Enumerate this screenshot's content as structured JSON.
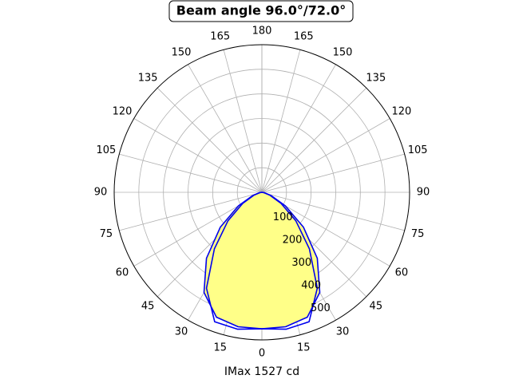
{
  "chart_data": {
    "type": "polar",
    "title": "Beam angle 96.0°/72.0°",
    "xlabel": "IMax 1527 cd",
    "rlim": [
      0,
      600
    ],
    "rticks": [
      100,
      200,
      300,
      400,
      500
    ],
    "thetaticks": [
      0,
      15,
      30,
      45,
      60,
      75,
      90,
      105,
      120,
      135,
      150,
      165,
      180
    ],
    "grid": true,
    "angles": [
      -90,
      -80,
      -70,
      -60,
      -50,
      -40,
      -30,
      -20,
      -10,
      0,
      10,
      20,
      30,
      40,
      50,
      60,
      70,
      80,
      90
    ],
    "series": [
      {
        "color": "#0000ee",
        "fill": "#ffff88",
        "values": [
          0,
          10,
          40,
          110,
          220,
          350,
          470,
          540,
          555,
          555,
          555,
          540,
          470,
          350,
          220,
          110,
          40,
          10,
          0
        ]
      },
      {
        "color": "#0000ee",
        "values": [
          0,
          8,
          35,
          90,
          180,
          300,
          450,
          560,
          565,
          555,
          565,
          560,
          450,
          300,
          180,
          90,
          35,
          8,
          0
        ]
      }
    ]
  }
}
